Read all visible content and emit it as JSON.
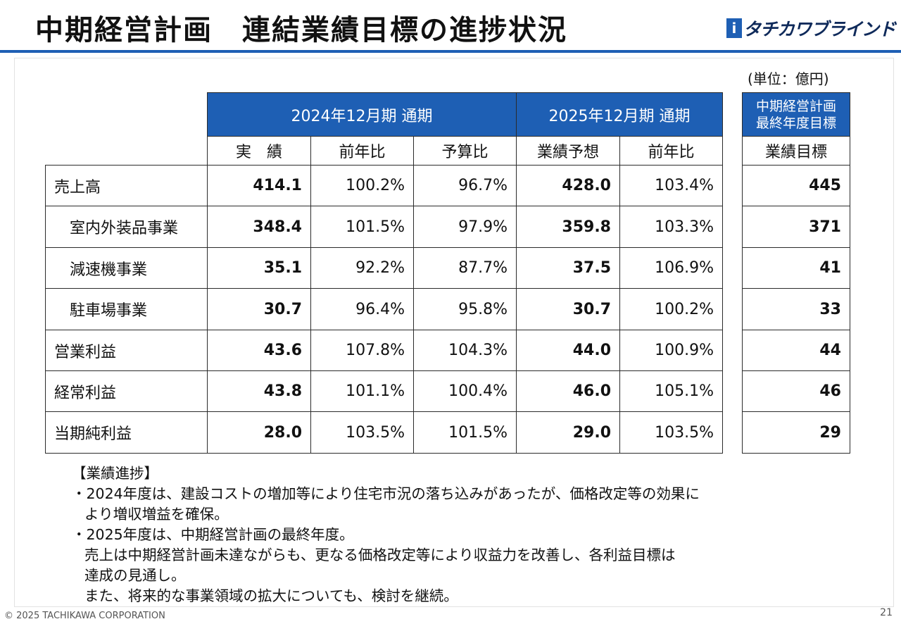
{
  "header": {
    "title": "中期経営計画　連結業績目標の進捗状況",
    "logo_text": "タチカワブラインド",
    "logo_mark": "i",
    "accent_color": "#1e5fb4"
  },
  "unit_label": "(単位：億円)",
  "table": {
    "period_2024": "2024年12月期 通期",
    "period_2025": "2025年12月期 通期",
    "target_header_line1": "中期経営計画",
    "target_header_line2": "最終年度目標",
    "sub_headers": [
      "実　績",
      "前年比",
      "予算比",
      "業績予想",
      "前年比"
    ],
    "target_sub_header": "業績目標",
    "rows": [
      {
        "label": "売上高",
        "indent": false,
        "actual": "414.1",
        "yoy": "100.2%",
        "vs_budget": "96.7%",
        "forecast": "428.0",
        "forecast_yoy": "103.4%",
        "target": "445"
      },
      {
        "label": "室内外装品事業",
        "indent": true,
        "actual": "348.4",
        "yoy": "101.5%",
        "vs_budget": "97.9%",
        "forecast": "359.8",
        "forecast_yoy": "103.3%",
        "target": "371"
      },
      {
        "label": "減速機事業",
        "indent": true,
        "actual": "35.1",
        "yoy": "92.2%",
        "vs_budget": "87.7%",
        "forecast": "37.5",
        "forecast_yoy": "106.9%",
        "target": "41"
      },
      {
        "label": "駐車場事業",
        "indent": true,
        "actual": "30.7",
        "yoy": "96.4%",
        "vs_budget": "95.8%",
        "forecast": "30.7",
        "forecast_yoy": "100.2%",
        "target": "33"
      },
      {
        "label": "営業利益",
        "indent": false,
        "actual": "43.6",
        "yoy": "107.8%",
        "vs_budget": "104.3%",
        "forecast": "44.0",
        "forecast_yoy": "100.9%",
        "target": "44"
      },
      {
        "label": "経常利益",
        "indent": false,
        "actual": "43.8",
        "yoy": "101.1%",
        "vs_budget": "100.4%",
        "forecast": "46.0",
        "forecast_yoy": "105.1%",
        "target": "46"
      },
      {
        "label": "当期純利益",
        "indent": false,
        "actual": "28.0",
        "yoy": "103.5%",
        "vs_budget": "101.5%",
        "forecast": "29.0",
        "forecast_yoy": "103.5%",
        "target": "29"
      }
    ]
  },
  "notes": {
    "heading": "【業績進捗】",
    "lines": [
      {
        "text": "・2024年度は、建設コストの増加等により住宅市況の落ち込みがあったが、価格改定等の効果に",
        "indent": false
      },
      {
        "text": "より増収増益を確保。",
        "indent": true
      },
      {
        "text": "・2025年度は、中期経営計画の最終年度。",
        "indent": false
      },
      {
        "text": "売上は中期経営計画未達ながらも、更なる価格改定等により収益力を改善し、各利益目標は",
        "indent": true
      },
      {
        "text": "達成の見通し。",
        "indent": true
      },
      {
        "text": "また、将来的な事業領域の拡大についても、検討を継続。",
        "indent": true
      }
    ]
  },
  "footer": {
    "copyright": "© 2025 TACHIKAWA CORPORATION",
    "page_number": "21"
  }
}
